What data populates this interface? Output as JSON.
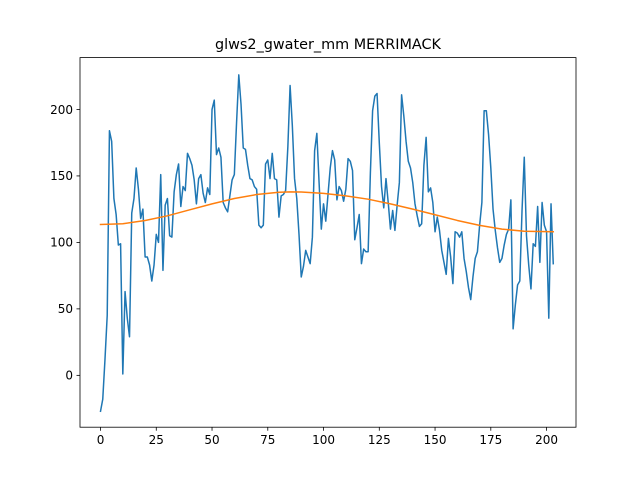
{
  "chart_data": {
    "type": "line",
    "title": "glws2_gwater_mm MERRIMACK",
    "xlabel": "",
    "ylabel": "",
    "xlim": [
      -9.2,
      213.2
    ],
    "ylim": [
      -39,
      239
    ],
    "xticks": [
      0,
      25,
      50,
      75,
      100,
      125,
      150,
      175,
      200
    ],
    "yticks": [
      0,
      50,
      100,
      150,
      200
    ],
    "grid": false,
    "colors": {
      "series1": "#1f77b4",
      "series2": "#ff7f0e"
    },
    "series": [
      {
        "values": [
          -27,
          -18,
          12,
          45,
          184,
          176,
          133,
          121,
          98,
          99,
          1,
          63,
          43,
          29,
          122,
          133,
          156,
          140,
          118,
          125,
          89,
          89,
          83,
          71,
          83,
          106,
          100,
          151,
          79,
          128,
          133,
          105,
          104,
          138,
          151,
          159,
          127,
          142,
          139,
          167,
          163,
          158,
          147,
          129,
          148,
          151,
          137,
          130,
          141,
          136,
          200,
          207,
          166,
          171,
          164,
          130,
          126,
          123,
          135,
          147,
          151,
          190,
          226,
          204,
          171,
          170,
          158,
          148,
          147,
          142,
          140,
          113,
          111,
          113,
          159,
          162,
          148,
          167,
          148,
          147,
          119,
          135,
          136,
          139,
          172,
          218,
          188,
          148,
          133,
          106,
          74,
          82,
          94,
          89,
          84,
          104,
          169,
          182,
          145,
          110,
          129,
          116,
          136,
          156,
          169,
          162,
          132,
          142,
          139,
          131,
          140,
          163,
          161,
          154,
          102,
          111,
          121,
          84,
          95,
          93,
          93,
          152,
          199,
          210,
          212,
          175,
          142,
          126,
          148,
          130,
          110,
          124,
          109,
          128,
          145,
          211,
          195,
          176,
          161,
          156,
          145,
          129,
          120,
          112,
          114,
          158,
          179,
          138,
          141,
          130,
          108,
          119,
          109,
          94,
          85,
          76,
          103,
          89,
          69,
          108,
          107,
          104,
          108,
          88,
          78,
          66,
          57,
          74,
          88,
          93,
          113,
          130,
          199,
          199,
          181,
          156,
          125,
          109,
          96,
          85,
          88,
          98,
          106,
          110,
          132,
          35,
          53,
          68,
          71,
          124,
          164,
          105,
          83,
          65,
          99,
          97,
          127,
          85,
          130,
          113,
          108,
          43,
          129,
          84
        ]
      },
      {
        "x": [
          0,
          10,
          20,
          30,
          40,
          50,
          60,
          70,
          80,
          85,
          90,
          100,
          110,
          120,
          130,
          140,
          150,
          160,
          170,
          180,
          190,
          203
        ],
        "values": [
          113.5,
          114.0,
          116.5,
          120.0,
          124.5,
          129.0,
          133.0,
          136.0,
          137.7,
          138.0,
          137.9,
          136.9,
          135.0,
          132.5,
          129.0,
          125.0,
          120.8,
          116.5,
          112.8,
          110.0,
          108.4,
          108.0
        ]
      }
    ]
  }
}
